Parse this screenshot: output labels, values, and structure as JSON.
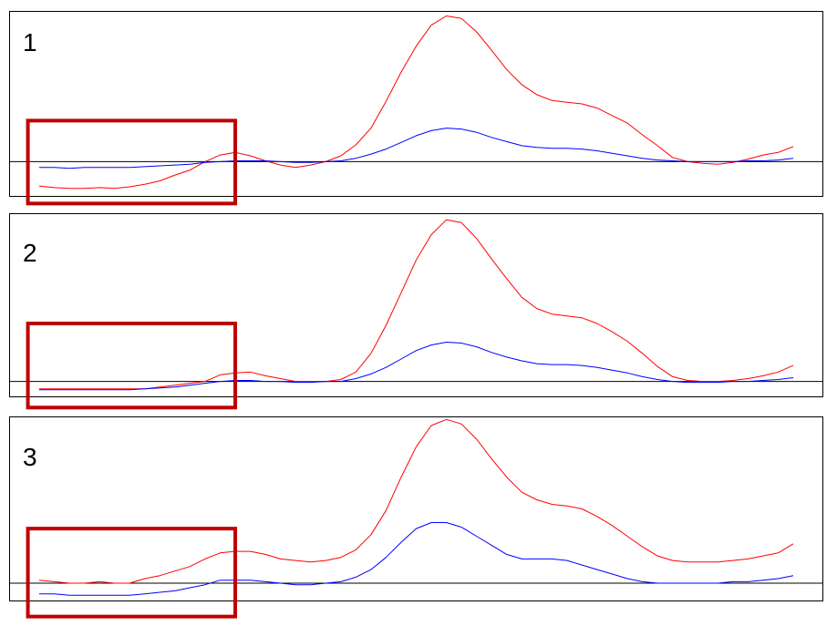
{
  "colors": {
    "series_red": "#ff0000",
    "series_blue": "#0000ff",
    "highlight_box": "#c00000",
    "baseline": "#000000",
    "frame": "#000000"
  },
  "chart_data": [
    {
      "type": "line",
      "panel_label": "1",
      "title": "",
      "xlabel": "",
      "ylabel": "",
      "grid": false,
      "legend": "none",
      "xlim": [
        0,
        100
      ],
      "ylim": [
        -0.42,
        1.8
      ],
      "baseline_y": 0,
      "highlight_box": {
        "x": [
          -1.5,
          26
        ],
        "y": [
          -0.5,
          0.49
        ]
      },
      "series": [
        {
          "color": "red",
          "x": [
            0,
            2,
            4,
            6,
            8,
            10,
            12,
            14,
            16,
            18,
            20,
            22,
            24,
            26,
            28,
            30,
            32,
            34,
            36,
            38,
            40,
            42,
            44,
            46,
            48,
            50,
            52,
            54,
            56,
            58,
            60,
            62,
            64,
            66,
            68,
            70,
            72,
            74,
            76,
            78,
            80,
            82,
            84,
            86,
            88,
            90,
            92,
            94,
            96,
            98,
            100
          ],
          "y": [
            -0.29,
            -0.31,
            -0.32,
            -0.32,
            -0.31,
            -0.32,
            -0.3,
            -0.27,
            -0.23,
            -0.16,
            -0.1,
            0.0,
            0.08,
            0.11,
            0.07,
            0.01,
            -0.04,
            -0.07,
            -0.04,
            0.0,
            0.07,
            0.2,
            0.4,
            0.72,
            1.07,
            1.38,
            1.63,
            1.74,
            1.71,
            1.55,
            1.33,
            1.1,
            0.92,
            0.8,
            0.73,
            0.71,
            0.69,
            0.64,
            0.55,
            0.46,
            0.32,
            0.19,
            0.05,
            0.0,
            -0.02,
            -0.03,
            -0.01,
            0.03,
            0.08,
            0.11,
            0.18
          ]
        },
        {
          "color": "blue",
          "x": [
            0,
            2,
            4,
            6,
            8,
            10,
            12,
            14,
            16,
            18,
            20,
            22,
            24,
            26,
            28,
            30,
            32,
            34,
            36,
            38,
            40,
            42,
            44,
            46,
            48,
            50,
            52,
            54,
            56,
            58,
            60,
            62,
            64,
            66,
            68,
            70,
            72,
            74,
            76,
            78,
            80,
            82,
            84,
            86,
            88,
            90,
            92,
            94,
            96,
            98,
            100
          ],
          "y": [
            -0.07,
            -0.07,
            -0.08,
            -0.07,
            -0.07,
            -0.07,
            -0.07,
            -0.06,
            -0.05,
            -0.04,
            -0.03,
            -0.01,
            0.0,
            0.01,
            0.01,
            0.01,
            0.0,
            -0.01,
            -0.01,
            0.0,
            0.01,
            0.04,
            0.09,
            0.15,
            0.23,
            0.31,
            0.37,
            0.4,
            0.39,
            0.35,
            0.29,
            0.24,
            0.19,
            0.17,
            0.16,
            0.16,
            0.15,
            0.13,
            0.1,
            0.07,
            0.04,
            0.02,
            0.01,
            0.0,
            0.0,
            0.0,
            0.0,
            0.01,
            0.01,
            0.02,
            0.04
          ]
        }
      ]
    },
    {
      "type": "line",
      "panel_label": "2",
      "title": "",
      "xlabel": "",
      "ylabel": "",
      "grid": false,
      "legend": "none",
      "xlim": [
        0,
        100
      ],
      "ylim": [
        -0.17,
        1.8
      ],
      "baseline_y": 0,
      "highlight_box": {
        "x": [
          -1.5,
          26
        ],
        "y": [
          -0.28,
          0.62
        ]
      },
      "series": [
        {
          "color": "red",
          "x": [
            0,
            2,
            4,
            6,
            8,
            10,
            12,
            14,
            16,
            18,
            20,
            22,
            24,
            26,
            28,
            30,
            32,
            34,
            36,
            38,
            40,
            42,
            44,
            46,
            48,
            50,
            52,
            54,
            56,
            58,
            60,
            62,
            64,
            66,
            68,
            70,
            72,
            74,
            76,
            78,
            80,
            82,
            84,
            86,
            88,
            90,
            92,
            94,
            96,
            98,
            100
          ],
          "y": [
            -0.08,
            -0.08,
            -0.08,
            -0.08,
            -0.08,
            -0.08,
            -0.08,
            -0.08,
            -0.06,
            -0.04,
            -0.02,
            0.0,
            0.07,
            0.09,
            0.1,
            0.06,
            0.03,
            0.0,
            0.0,
            0.0,
            0.02,
            0.1,
            0.3,
            0.6,
            0.95,
            1.3,
            1.57,
            1.73,
            1.7,
            1.53,
            1.31,
            1.1,
            0.9,
            0.78,
            0.72,
            0.7,
            0.68,
            0.62,
            0.53,
            0.43,
            0.3,
            0.16,
            0.05,
            0.01,
            0.0,
            0.0,
            0.01,
            0.03,
            0.06,
            0.1,
            0.17
          ]
        },
        {
          "color": "blue",
          "x": [
            0,
            2,
            4,
            6,
            8,
            10,
            12,
            14,
            16,
            18,
            20,
            22,
            24,
            26,
            28,
            30,
            32,
            34,
            36,
            38,
            40,
            42,
            44,
            46,
            48,
            50,
            52,
            54,
            56,
            58,
            60,
            62,
            64,
            66,
            68,
            70,
            72,
            74,
            76,
            78,
            80,
            82,
            84,
            86,
            88,
            90,
            92,
            94,
            96,
            98,
            100
          ],
          "y": [
            -0.09,
            -0.09,
            -0.09,
            -0.09,
            -0.09,
            -0.09,
            -0.09,
            -0.08,
            -0.07,
            -0.06,
            -0.04,
            -0.02,
            0.0,
            0.01,
            0.01,
            0.0,
            0.0,
            -0.01,
            -0.01,
            0.0,
            0.0,
            0.03,
            0.08,
            0.15,
            0.24,
            0.33,
            0.39,
            0.42,
            0.41,
            0.37,
            0.31,
            0.26,
            0.22,
            0.19,
            0.18,
            0.18,
            0.17,
            0.15,
            0.12,
            0.09,
            0.05,
            0.02,
            0.0,
            -0.01,
            -0.01,
            -0.01,
            0.0,
            0.0,
            0.01,
            0.02,
            0.04
          ]
        }
      ]
    },
    {
      "type": "line",
      "panel_label": "3",
      "title": "",
      "xlabel": "",
      "ylabel": "",
      "grid": false,
      "legend": "none",
      "xlim": [
        0,
        100
      ],
      "ylim": [
        -0.12,
        1.1
      ],
      "baseline_y": 0,
      "highlight_box": {
        "x": [
          -1.5,
          26
        ],
        "y": [
          -0.22,
          0.36
        ]
      },
      "series": [
        {
          "color": "red",
          "x": [
            0,
            2,
            4,
            6,
            8,
            10,
            12,
            14,
            16,
            18,
            20,
            22,
            24,
            26,
            28,
            30,
            32,
            34,
            36,
            38,
            40,
            42,
            44,
            46,
            48,
            50,
            52,
            54,
            56,
            58,
            60,
            62,
            64,
            66,
            68,
            70,
            72,
            74,
            76,
            78,
            80,
            82,
            84,
            86,
            88,
            90,
            92,
            94,
            96,
            98,
            100
          ],
          "y": [
            0.02,
            0.01,
            0.0,
            0.0,
            0.01,
            0.0,
            0.0,
            0.03,
            0.05,
            0.08,
            0.11,
            0.16,
            0.2,
            0.21,
            0.21,
            0.19,
            0.16,
            0.15,
            0.14,
            0.15,
            0.17,
            0.22,
            0.32,
            0.48,
            0.7,
            0.9,
            1.04,
            1.08,
            1.05,
            0.95,
            0.82,
            0.7,
            0.6,
            0.55,
            0.52,
            0.51,
            0.49,
            0.44,
            0.38,
            0.31,
            0.24,
            0.18,
            0.15,
            0.14,
            0.14,
            0.14,
            0.15,
            0.16,
            0.18,
            0.2,
            0.26
          ]
        },
        {
          "color": "blue",
          "x": [
            0,
            2,
            4,
            6,
            8,
            10,
            12,
            14,
            16,
            18,
            20,
            22,
            24,
            26,
            28,
            30,
            32,
            34,
            36,
            38,
            40,
            42,
            44,
            46,
            48,
            50,
            52,
            54,
            56,
            58,
            60,
            62,
            64,
            66,
            68,
            70,
            72,
            74,
            76,
            78,
            80,
            82,
            84,
            86,
            88,
            90,
            92,
            94,
            96,
            98,
            100
          ],
          "y": [
            -0.07,
            -0.07,
            -0.08,
            -0.08,
            -0.08,
            -0.08,
            -0.08,
            -0.07,
            -0.06,
            -0.05,
            -0.03,
            -0.01,
            0.02,
            0.02,
            0.02,
            0.01,
            0.0,
            -0.01,
            -0.01,
            0.0,
            0.01,
            0.04,
            0.09,
            0.17,
            0.27,
            0.36,
            0.4,
            0.4,
            0.37,
            0.31,
            0.25,
            0.19,
            0.16,
            0.16,
            0.16,
            0.15,
            0.12,
            0.09,
            0.06,
            0.03,
            0.01,
            0.0,
            0.0,
            0.0,
            0.0,
            0.0,
            0.01,
            0.01,
            0.02,
            0.03,
            0.05
          ]
        }
      ]
    }
  ]
}
